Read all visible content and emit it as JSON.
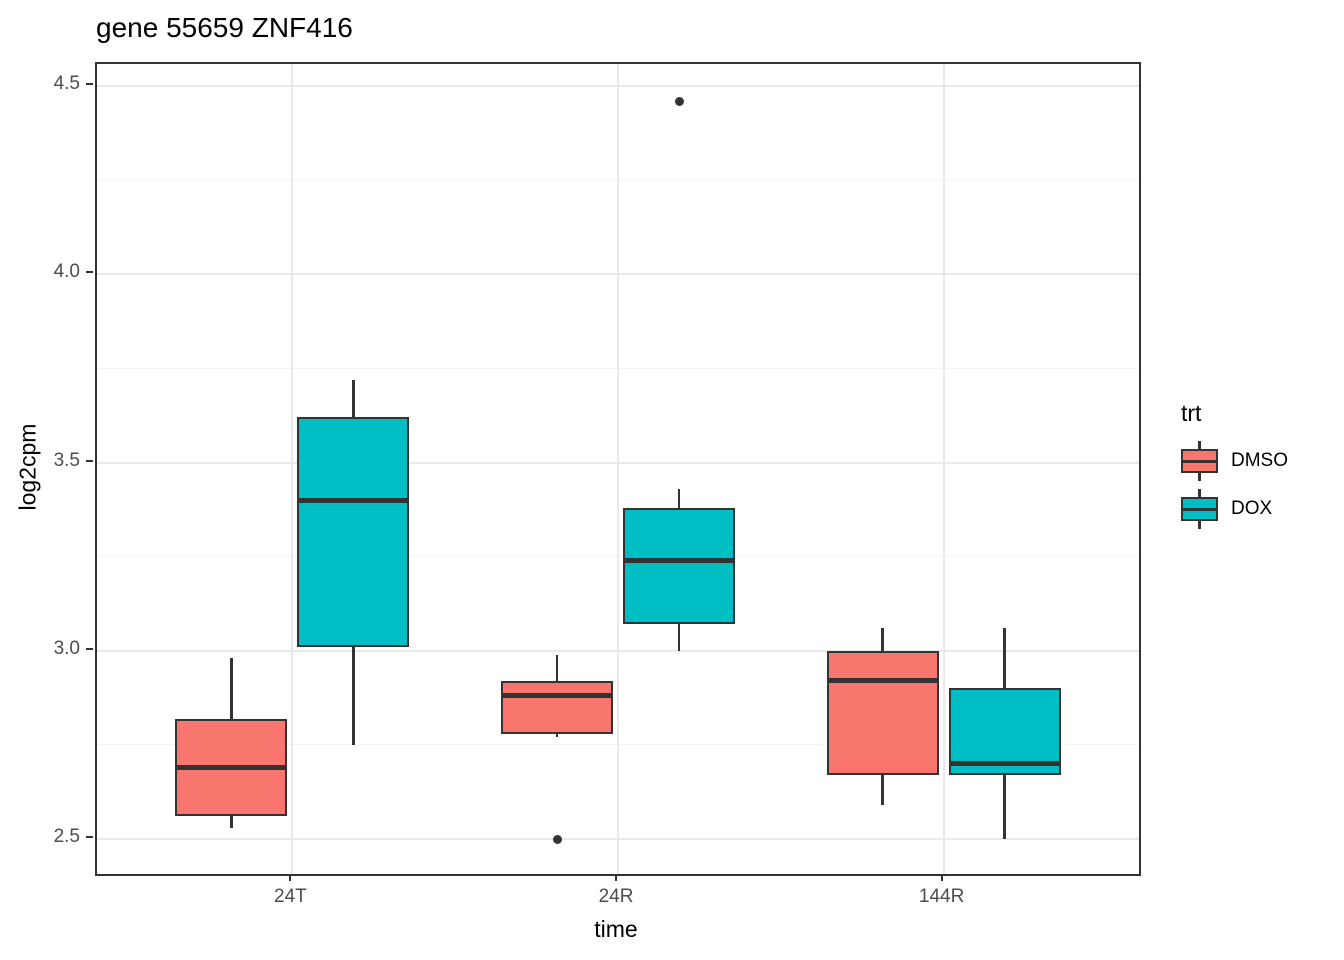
{
  "title": "gene 55659 ZNF416",
  "chart_data": {
    "type": "boxplot",
    "title": "gene 55659 ZNF416",
    "xlabel": "time",
    "ylabel": "log2cpm",
    "categories": [
      "24T",
      "24R",
      "144R"
    ],
    "y_axis": {
      "tick_labels": [
        "2.5",
        "3.0",
        "3.5",
        "4.0",
        "4.5"
      ],
      "tick_values": [
        2.5,
        3.0,
        3.5,
        4.0,
        4.5
      ],
      "minor_tick_values": [
        2.75,
        3.25,
        3.75,
        4.25
      ],
      "range": [
        2.41,
        4.56
      ]
    },
    "grid": true,
    "legend": {
      "title": "trt",
      "position": "right",
      "entries": [
        {
          "label": "DMSO",
          "color": "#F8766D"
        },
        {
          "label": "DOX",
          "color": "#00BFC4"
        }
      ]
    },
    "series": [
      {
        "name": "DMSO",
        "color": "#F8766D",
        "boxes": [
          {
            "category": "24T",
            "whisker_low": 2.53,
            "q1": 2.56,
            "median": 2.69,
            "q3": 2.82,
            "whisker_high": 2.98,
            "outliers": []
          },
          {
            "category": "24R",
            "whisker_low": 2.77,
            "q1": 2.78,
            "median": 2.88,
            "q3": 2.92,
            "whisker_high": 2.99,
            "outliers": [
              2.5
            ]
          },
          {
            "category": "144R",
            "whisker_low": 2.59,
            "q1": 2.67,
            "median": 2.92,
            "q3": 3.0,
            "whisker_high": 3.06,
            "outliers": []
          }
        ]
      },
      {
        "name": "DOX",
        "color": "#00BFC4",
        "boxes": [
          {
            "category": "24T",
            "whisker_low": 2.75,
            "q1": 3.01,
            "median": 3.4,
            "q3": 3.62,
            "whisker_high": 3.72,
            "outliers": []
          },
          {
            "category": "24R",
            "whisker_low": 3.0,
            "q1": 3.07,
            "median": 3.24,
            "q3": 3.38,
            "whisker_high": 3.43,
            "outliers": [
              4.46
            ]
          },
          {
            "category": "144R",
            "whisker_low": 2.5,
            "q1": 2.67,
            "median": 2.7,
            "q3": 2.9,
            "whisker_high": 3.06,
            "outliers": []
          }
        ]
      }
    ],
    "style": {
      "box_outline": "#333333",
      "median_color": "#333333",
      "outlier_color": "#333333",
      "grid_major": "#e9e9e9",
      "grid_minor": "#f4f4f4",
      "panel_border": "#333333",
      "panel_background": "#ffffff",
      "tick_text_color": "#4d4d4d",
      "tick_mark_color": "#333333"
    }
  }
}
